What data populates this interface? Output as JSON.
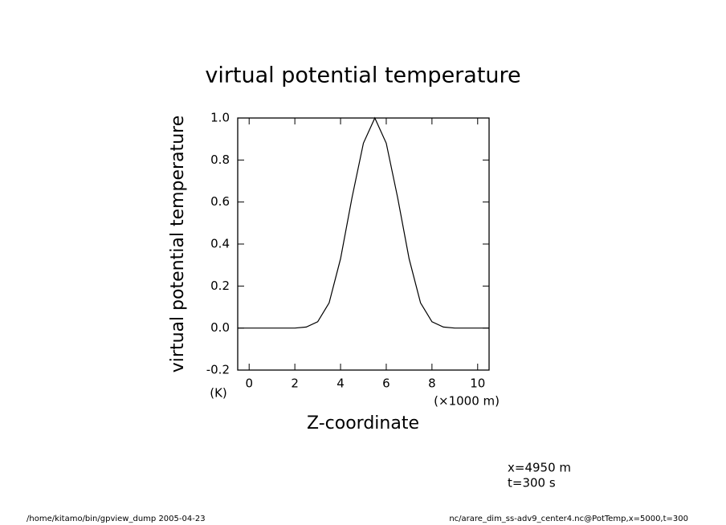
{
  "chart_data": {
    "type": "line",
    "title": "virtual potential temperature",
    "y_label": "virtual potential temperature",
    "y_unit": "(K)",
    "x_label": "Z-coordinate",
    "x_unit": "(×1000 m)",
    "annotations": [
      "x=4950 m",
      "t=300 s"
    ],
    "footer_left": "/home/kitamo/bin/gpview_dump  2005-04-23",
    "footer_right": "nc/arare_dim_ss-adv9_center4.nc@PotTemp,x=5000,t=300",
    "x": [
      -0.5,
      0,
      0.5,
      1,
      1.5,
      2,
      2.5,
      3,
      3.5,
      4,
      4.5,
      5,
      5.5,
      6,
      6.5,
      7,
      7.5,
      8,
      8.5,
      9,
      9.5,
      10,
      10.5
    ],
    "series": [
      {
        "color": "#000000",
        "values": [
          0,
          0,
          0,
          0,
          0,
          0,
          0.005,
          0.03,
          0.12,
          0.33,
          0.62,
          0.88,
          1.0,
          0.88,
          0.62,
          0.33,
          0.12,
          0.03,
          0.005,
          0,
          0,
          0,
          0
        ]
      }
    ],
    "xlim": [
      -0.5,
      10.5
    ],
    "xticks": [
      0,
      2,
      4,
      6,
      8,
      10
    ],
    "ylim": [
      -0.2,
      1.0
    ],
    "yticks": [
      {
        "value": 1.0,
        "label": "1.0"
      },
      0.8,
      0.6,
      0.4,
      0.2,
      {
        "value": 0,
        "label": "0.0"
      },
      -0.2
    ]
  }
}
